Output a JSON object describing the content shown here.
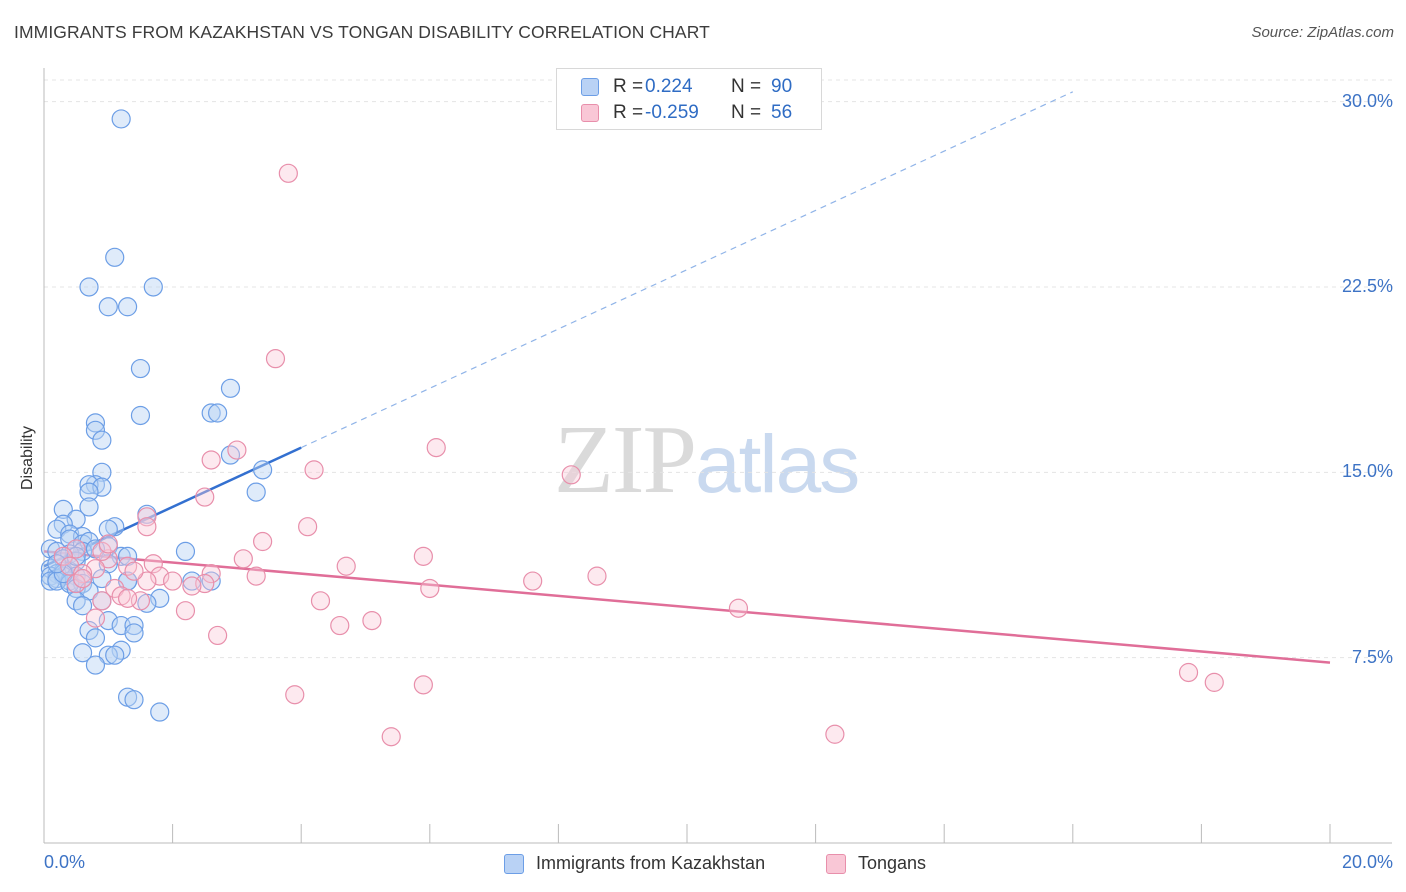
{
  "header": {
    "title": "IMMIGRANTS FROM KAZAKHSTAN VS TONGAN DISABILITY CORRELATION CHART",
    "source": "Source: ZipAtlas.com"
  },
  "watermark": {
    "zip": "ZIP",
    "atlas": "atlas"
  },
  "legend_top": {
    "r_label": "R =",
    "n_label": "N =",
    "blue": {
      "r": "0.224",
      "n": "90"
    },
    "pink": {
      "r": "-0.259",
      "n": "56"
    }
  },
  "legend_bottom": {
    "blue_label": "Immigrants from Kazakhstan",
    "pink_label": "Tongans"
  },
  "colors": {
    "blue_fill": "#b9d2f5",
    "blue_stroke": "#6c9ee6",
    "blue_line": "#3370d0",
    "pink_fill": "#f9c7d6",
    "pink_stroke": "#e88fab",
    "pink_line": "#e06e98",
    "tick_text": "#3d73c5",
    "grid": "#e4e4e4"
  },
  "chart_data": {
    "type": "scatter",
    "title": "IMMIGRANTS FROM KAZAKHSTAN VS TONGAN DISABILITY CORRELATION CHART",
    "xlabel": "",
    "ylabel": "Disability",
    "xlim": [
      0,
      20
    ],
    "ylim": [
      0,
      31.2
    ],
    "x_tick_labels": [
      "0.0%",
      "20.0%"
    ],
    "y_ticks": [
      7.5,
      15.0,
      22.5,
      30.0
    ],
    "y_tick_labels": [
      "7.5%",
      "15.0%",
      "22.5%",
      "30.0%"
    ],
    "grid": true,
    "legend_placement": "top-center",
    "series": [
      {
        "name": "Immigrants from Kazakhstan",
        "color": "#6c9ee6",
        "r": 0.224,
        "n": 90,
        "trend": {
          "x": [
            0,
            4.0
          ],
          "y": [
            11.2,
            16.0
          ],
          "dashed_to": [
            16.0,
            30.4
          ]
        },
        "points": [
          [
            1.2,
            29.3
          ],
          [
            1.1,
            23.7
          ],
          [
            0.7,
            22.5
          ],
          [
            1.7,
            22.5
          ],
          [
            1.0,
            21.7
          ],
          [
            1.3,
            21.7
          ],
          [
            1.5,
            19.2
          ],
          [
            2.9,
            18.4
          ],
          [
            1.5,
            17.3
          ],
          [
            2.6,
            17.4
          ],
          [
            2.7,
            17.4
          ],
          [
            0.8,
            17.0
          ],
          [
            0.8,
            16.7
          ],
          [
            0.9,
            16.3
          ],
          [
            2.9,
            15.7
          ],
          [
            3.4,
            15.1
          ],
          [
            0.9,
            15.0
          ],
          [
            0.8,
            14.5
          ],
          [
            0.7,
            14.5
          ],
          [
            0.9,
            14.4
          ],
          [
            3.3,
            14.2
          ],
          [
            0.7,
            14.2
          ],
          [
            0.7,
            13.6
          ],
          [
            0.3,
            13.5
          ],
          [
            1.6,
            13.3
          ],
          [
            0.5,
            13.1
          ],
          [
            0.3,
            12.9
          ],
          [
            1.1,
            12.8
          ],
          [
            1.0,
            12.7
          ],
          [
            0.2,
            12.7
          ],
          [
            0.4,
            12.5
          ],
          [
            0.6,
            12.4
          ],
          [
            0.4,
            12.3
          ],
          [
            0.6,
            12.1
          ],
          [
            0.7,
            12.2
          ],
          [
            1.0,
            12.0
          ],
          [
            0.1,
            11.9
          ],
          [
            0.2,
            11.8
          ],
          [
            2.2,
            11.8
          ],
          [
            0.6,
            11.8
          ],
          [
            0.4,
            11.7
          ],
          [
            1.2,
            11.6
          ],
          [
            1.3,
            11.6
          ],
          [
            0.3,
            11.5
          ],
          [
            0.5,
            11.4
          ],
          [
            1.0,
            11.3
          ],
          [
            0.1,
            11.1
          ],
          [
            0.3,
            11.0
          ],
          [
            0.4,
            11.0
          ],
          [
            0.2,
            10.9
          ],
          [
            0.1,
            10.8
          ],
          [
            0.3,
            10.8
          ],
          [
            0.5,
            10.8
          ],
          [
            0.2,
            10.7
          ],
          [
            0.4,
            10.6
          ],
          [
            0.6,
            10.7
          ],
          [
            0.9,
            10.7
          ],
          [
            1.3,
            10.6
          ],
          [
            1.3,
            10.6
          ],
          [
            0.6,
            10.5
          ],
          [
            2.3,
            10.6
          ],
          [
            2.6,
            10.6
          ],
          [
            0.1,
            10.6
          ],
          [
            0.2,
            10.6
          ],
          [
            0.4,
            10.5
          ],
          [
            0.5,
            10.3
          ],
          [
            0.7,
            10.2
          ],
          [
            1.8,
            9.9
          ],
          [
            1.6,
            9.7
          ],
          [
            0.5,
            9.8
          ],
          [
            0.6,
            9.6
          ],
          [
            0.9,
            9.8
          ],
          [
            1.0,
            9.0
          ],
          [
            1.2,
            8.8
          ],
          [
            1.4,
            8.8
          ],
          [
            0.7,
            8.6
          ],
          [
            0.8,
            8.3
          ],
          [
            1.4,
            8.5
          ],
          [
            1.2,
            7.8
          ],
          [
            0.6,
            7.7
          ],
          [
            1.0,
            7.6
          ],
          [
            1.1,
            7.6
          ],
          [
            0.8,
            7.2
          ],
          [
            1.3,
            5.9
          ],
          [
            1.4,
            5.8
          ],
          [
            1.8,
            5.3
          ],
          [
            0.5,
            11.6
          ],
          [
            0.3,
            10.9
          ],
          [
            0.2,
            11.3
          ],
          [
            0.8,
            11.9
          ]
        ]
      },
      {
        "name": "Tongans",
        "color": "#e88fab",
        "r": -0.259,
        "n": 56,
        "trend": {
          "x": [
            0,
            20.0
          ],
          "y": [
            11.8,
            7.3
          ]
        },
        "points": [
          [
            3.8,
            27.1
          ],
          [
            3.6,
            19.6
          ],
          [
            6.1,
            16.0
          ],
          [
            3.0,
            15.9
          ],
          [
            2.6,
            15.5
          ],
          [
            4.2,
            15.1
          ],
          [
            8.2,
            14.9
          ],
          [
            2.5,
            14.0
          ],
          [
            1.6,
            13.2
          ],
          [
            1.6,
            12.8
          ],
          [
            4.1,
            12.8
          ],
          [
            3.4,
            12.2
          ],
          [
            3.1,
            11.5
          ],
          [
            5.9,
            11.6
          ],
          [
            1.0,
            11.5
          ],
          [
            0.9,
            11.8
          ],
          [
            0.5,
            11.9
          ],
          [
            0.3,
            11.6
          ],
          [
            0.4,
            11.2
          ],
          [
            0.8,
            11.1
          ],
          [
            1.3,
            11.2
          ],
          [
            1.7,
            11.3
          ],
          [
            4.7,
            11.2
          ],
          [
            0.6,
            10.9
          ],
          [
            2.6,
            10.9
          ],
          [
            1.8,
            10.8
          ],
          [
            3.3,
            10.8
          ],
          [
            8.6,
            10.8
          ],
          [
            2.0,
            10.6
          ],
          [
            2.5,
            10.5
          ],
          [
            7.6,
            10.6
          ],
          [
            1.6,
            10.6
          ],
          [
            0.5,
            10.5
          ],
          [
            2.3,
            10.4
          ],
          [
            6.0,
            10.3
          ],
          [
            1.1,
            10.3
          ],
          [
            1.2,
            10.0
          ],
          [
            1.5,
            9.8
          ],
          [
            0.9,
            9.8
          ],
          [
            4.3,
            9.8
          ],
          [
            1.3,
            9.9
          ],
          [
            10.8,
            9.5
          ],
          [
            2.2,
            9.4
          ],
          [
            0.8,
            9.1
          ],
          [
            5.1,
            9.0
          ],
          [
            4.6,
            8.8
          ],
          [
            2.7,
            8.4
          ],
          [
            3.9,
            6.0
          ],
          [
            5.9,
            6.4
          ],
          [
            5.4,
            4.3
          ],
          [
            12.3,
            4.4
          ],
          [
            17.8,
            6.9
          ],
          [
            18.2,
            6.5
          ],
          [
            1.0,
            12.1
          ],
          [
            1.4,
            11.0
          ],
          [
            0.6,
            10.7
          ]
        ]
      }
    ]
  }
}
